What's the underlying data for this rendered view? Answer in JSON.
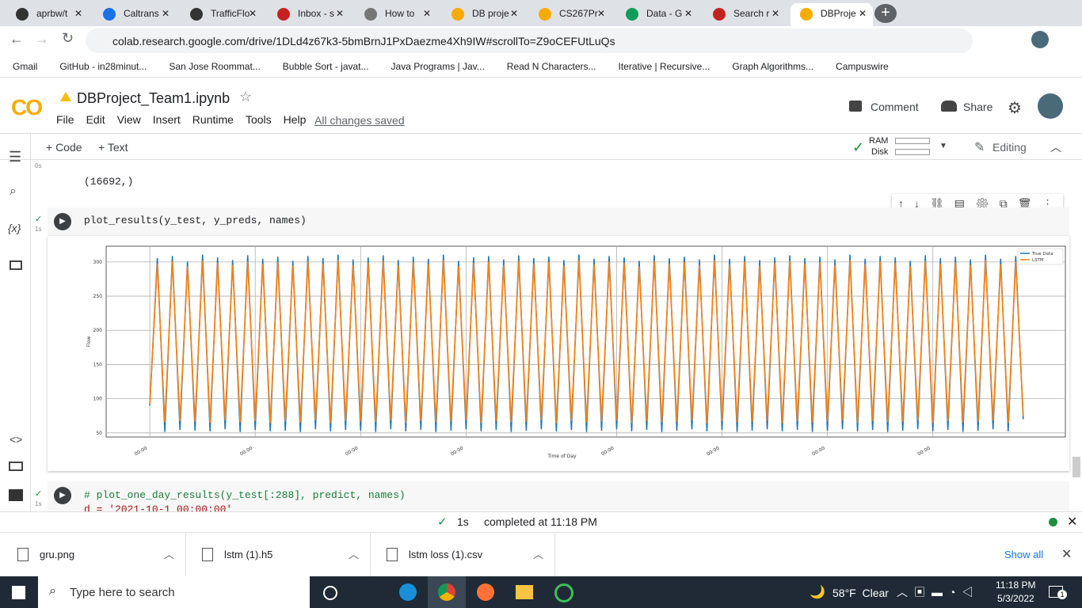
{
  "browser": {
    "tabs": [
      "aprbw/t",
      "Caltrans",
      "TrafficFlo",
      "Inbox - s",
      "How to",
      "DB proje",
      "CS267Pr",
      "Data - G",
      "Search r",
      "DBProje"
    ],
    "url": "colab.research.google.com/drive/1DLd4z67k3-5bmBrnJ1PxDaezme4Xh9IW#scrollTo=Z9oCEFUtLuQs",
    "bookmarks": [
      "Gmail",
      "GitHub - in28minut...",
      "San Jose Roommat...",
      "Bubble Sort - javat...",
      "Java Programs | Jav...",
      "Read N Characters...",
      "Iterative | Recursive...",
      "Graph Algorithms...",
      "Campuswire"
    ]
  },
  "colab": {
    "logo": "CO",
    "notebook_title": "DBProject_Team1.ipynb",
    "menu": [
      "File",
      "Edit",
      "View",
      "Insert",
      "Runtime",
      "Tools",
      "Help"
    ],
    "save_status": "All changes saved",
    "comment": "Comment",
    "share": "Share",
    "toolbar": {
      "add_code": "+ Code",
      "add_text": "+ Text",
      "ram": "RAM",
      "disk": "Disk",
      "mode": "Editing"
    },
    "sidebar_variables": "{x}",
    "cells": [
      {
        "time": "0s",
        "output": "(16692,)"
      },
      {
        "time": "1s",
        "code": "plot_results(y_test, y_preds, names)"
      },
      {
        "time": "1s",
        "code": [
          "# plot_one_day_results(y_test[:288], predict, names)",
          "d = '2021-10-1 00:00:00'"
        ]
      }
    ],
    "status": {
      "duration": "1s",
      "message": "completed at 11:18 PM"
    }
  },
  "downloads": {
    "files": [
      "gru.png",
      "lstm (1).h5",
      "lstm loss (1).csv"
    ],
    "show_all": "Show all"
  },
  "taskbar": {
    "search": "Type here to search",
    "weather": "58°F  Clear",
    "time": "11:18 PM",
    "date": "5/3/2022",
    "notifications": "1"
  },
  "chart_data": {
    "type": "line",
    "xlabel": "Time of Day",
    "ylabel": "Flow",
    "grid": true,
    "legend": "upper right",
    "xlim": [
      -2.9,
      60.8
    ],
    "ylim": [
      44,
      323
    ],
    "yticks": [
      50,
      100,
      150,
      200,
      250,
      300
    ],
    "xticks": [
      {
        "value": 0,
        "label": "00:00"
      },
      {
        "value": 7,
        "label": "00:00"
      },
      {
        "value": 14,
        "label": "00:00"
      },
      {
        "value": 21,
        "label": "00:00"
      },
      {
        "value": 31,
        "label": "00:00"
      },
      {
        "value": 38,
        "label": "00:00"
      },
      {
        "value": 45,
        "label": "00:00"
      },
      {
        "value": 52,
        "label": "00:00"
      }
    ],
    "x": [
      0,
      0.5,
      1,
      1.5,
      2,
      2.5,
      3,
      3.5,
      4,
      4.5,
      5,
      5.5,
      6,
      6.5,
      7,
      7.5,
      8,
      8.5,
      9,
      9.5,
      10,
      10.5,
      11,
      11.5,
      12,
      12.5,
      13,
      13.5,
      14,
      14.5,
      15,
      15.5,
      16,
      16.5,
      17,
      17.5,
      18,
      18.5,
      19,
      19.5,
      20,
      20.5,
      21,
      21.5,
      22,
      22.5,
      23,
      23.5,
      24,
      24.5,
      25,
      25.5,
      26,
      26.5,
      27,
      27.5,
      28,
      28.5,
      29,
      29.5,
      30,
      30.5,
      31,
      31.5,
      32,
      32.5,
      33,
      33.5,
      34,
      34.5,
      35,
      35.5,
      36,
      36.5,
      37,
      37.5,
      38,
      38.5,
      39,
      39.5,
      40,
      40.5,
      41,
      41.5,
      42,
      42.5,
      43,
      43.5,
      44,
      44.5,
      45,
      45.5,
      46,
      46.5,
      47,
      47.5,
      48,
      48.5,
      49,
      49.5,
      50,
      50.5,
      51,
      51.5,
      52,
      52.5,
      53,
      53.5,
      54,
      54.5,
      55,
      55.5,
      56,
      56.5,
      57,
      57.5,
      58
    ],
    "series": [
      {
        "name": "True Data",
        "color": "#1f77b4",
        "values": [
          90,
          305,
          52,
          308,
          55,
          300,
          54,
          310,
          53,
          306,
          56,
          302,
          52,
          309,
          55,
          304,
          53,
          307,
          54,
          301,
          52,
          308,
          56,
          305,
          53,
          310,
          55,
          303,
          54,
          306,
          52,
          309,
          56,
          302,
          53,
          307,
          55,
          304,
          52,
          310,
          54,
          301,
          56,
          306,
          53,
          308,
          55,
          303,
          52,
          309,
          54,
          305,
          56,
          307,
          53,
          302,
          55,
          310,
          52,
          304,
          54,
          308,
          56,
          306,
          53,
          301,
          55,
          309,
          52,
          305,
          54,
          307,
          56,
          303,
          53,
          310,
          55,
          304,
          52,
          308,
          54,
          302,
          56,
          306,
          53,
          309,
          55,
          305,
          52,
          307,
          54,
          303,
          56,
          310,
          53,
          304,
          55,
          308,
          52,
          306,
          54,
          301,
          56,
          309,
          53,
          305,
          55,
          307,
          52,
          303,
          54,
          310,
          56,
          304,
          53,
          308,
          70
        ]
      },
      {
        "name": "LSTM",
        "color": "#ff7f0e",
        "values": [
          92,
          297,
          66,
          300,
          68,
          293,
          67,
          301,
          65,
          298,
          69,
          295,
          66,
          300,
          68,
          296,
          65,
          299,
          67,
          294,
          66,
          300,
          69,
          297,
          65,
          302,
          68,
          295,
          67,
          298,
          66,
          301,
          69,
          294,
          65,
          299,
          68,
          296,
          66,
          302,
          67,
          293,
          69,
          298,
          65,
          300,
          68,
          295,
          66,
          301,
          67,
          297,
          69,
          299,
          65,
          294,
          68,
          302,
          66,
          296,
          67,
          300,
          69,
          298,
          65,
          293,
          68,
          301,
          66,
          297,
          67,
          299,
          69,
          295,
          65,
          302,
          68,
          296,
          66,
          300,
          67,
          294,
          69,
          298,
          65,
          301,
          68,
          297,
          66,
          299,
          67,
          295,
          69,
          302,
          65,
          296,
          68,
          300,
          66,
          298,
          67,
          293,
          69,
          301,
          65,
          297,
          68,
          299,
          66,
          295,
          67,
          302,
          69,
          296,
          65,
          300,
          75
        ]
      }
    ]
  }
}
